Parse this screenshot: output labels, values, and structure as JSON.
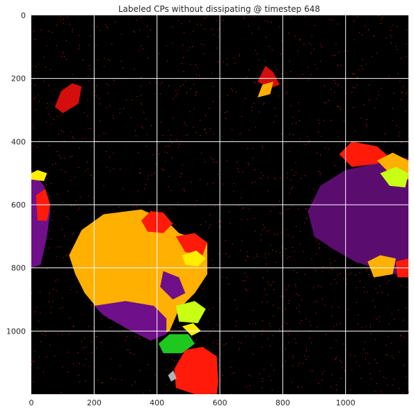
{
  "chart_data": {
    "type": "heatmap",
    "title": "Labeled CPs without dissipating @ timestep 648",
    "xlabel": "",
    "ylabel": "",
    "xlim": [
      0,
      1200
    ],
    "ylim": [
      1200,
      0
    ],
    "x_ticks": [
      0,
      200,
      400,
      600,
      800,
      1000
    ],
    "y_ticks": [
      0,
      200,
      400,
      600,
      800,
      1000
    ],
    "grid": true,
    "background": "#000000",
    "colors": {
      "purple": "#5a0d6e",
      "violet": "#6f0f8a",
      "orange": "#ffb000",
      "red": "#ff1a0a",
      "dark_red": "#d40d0d",
      "yellow": "#ffee00",
      "lime": "#c8ff14",
      "green": "#1ec81e",
      "pink": "#c97a7a",
      "grey": "#b4b4b4",
      "speckle": "#ff1e1e"
    },
    "regions": [
      {
        "label": "cluster-top-left-red",
        "color": "dark_red",
        "points": [
          [
            75,
            290
          ],
          [
            95,
            240
          ],
          [
            130,
            215
          ],
          [
            160,
            225
          ],
          [
            150,
            280
          ],
          [
            100,
            310
          ]
        ]
      },
      {
        "label": "cluster-top-center-red",
        "color": "dark_red",
        "points": [
          [
            720,
            210
          ],
          [
            745,
            160
          ],
          [
            770,
            180
          ],
          [
            790,
            220
          ],
          [
            760,
            230
          ]
        ]
      },
      {
        "label": "cluster-top-center-orange",
        "color": "orange",
        "points": [
          [
            720,
            260
          ],
          [
            735,
            220
          ],
          [
            770,
            210
          ],
          [
            760,
            250
          ]
        ]
      },
      {
        "label": "cluster-left-edge-purple",
        "color": "violet",
        "points": [
          [
            0,
            490
          ],
          [
            40,
            540
          ],
          [
            60,
            620
          ],
          [
            50,
            700
          ],
          [
            30,
            790
          ],
          [
            0,
            800
          ]
        ]
      },
      {
        "label": "cluster-left-edge-red",
        "color": "red",
        "points": [
          [
            15,
            570
          ],
          [
            45,
            550
          ],
          [
            60,
            600
          ],
          [
            50,
            650
          ],
          [
            20,
            650
          ]
        ]
      },
      {
        "label": "cluster-left-edge-yellow",
        "color": "yellow",
        "points": [
          [
            0,
            500
          ],
          [
            20,
            490
          ],
          [
            50,
            500
          ],
          [
            40,
            525
          ],
          [
            0,
            520
          ]
        ]
      },
      {
        "label": "cluster-right-purple",
        "color": "purple",
        "points": [
          [
            880,
            620
          ],
          [
            920,
            540
          ],
          [
            1000,
            490
          ],
          [
            1090,
            470
          ],
          [
            1200,
            450
          ],
          [
            1200,
            830
          ],
          [
            1120,
            810
          ],
          [
            1030,
            780
          ],
          [
            960,
            740
          ],
          [
            900,
            700
          ]
        ]
      },
      {
        "label": "cluster-right-red-top",
        "color": "red",
        "points": [
          [
            980,
            440
          ],
          [
            1020,
            400
          ],
          [
            1100,
            415
          ],
          [
            1140,
            450
          ],
          [
            1100,
            470
          ],
          [
            1020,
            480
          ]
        ]
      },
      {
        "label": "cluster-right-orange",
        "color": "orange",
        "points": [
          [
            1100,
            460
          ],
          [
            1150,
            435
          ],
          [
            1200,
            460
          ],
          [
            1200,
            520
          ],
          [
            1150,
            510
          ]
        ]
      },
      {
        "label": "cluster-right-lime",
        "color": "lime",
        "points": [
          [
            1110,
            500
          ],
          [
            1160,
            480
          ],
          [
            1200,
            500
          ],
          [
            1190,
            545
          ],
          [
            1140,
            540
          ]
        ]
      },
      {
        "label": "cluster-right-bottom-orange",
        "color": "orange",
        "points": [
          [
            1070,
            780
          ],
          [
            1110,
            760
          ],
          [
            1160,
            770
          ],
          [
            1150,
            820
          ],
          [
            1090,
            830
          ]
        ]
      },
      {
        "label": "cluster-right-bottom-red",
        "color": "red",
        "points": [
          [
            1160,
            780
          ],
          [
            1200,
            770
          ],
          [
            1200,
            830
          ],
          [
            1165,
            830
          ]
        ]
      },
      {
        "label": "cluster-center-orange",
        "color": "orange",
        "points": [
          [
            160,
            680
          ],
          [
            230,
            630
          ],
          [
            350,
            615
          ],
          [
            430,
            650
          ],
          [
            470,
            690
          ],
          [
            560,
            720
          ],
          [
            560,
            820
          ],
          [
            520,
            880
          ],
          [
            470,
            930
          ],
          [
            440,
            1000
          ],
          [
            380,
            1030
          ],
          [
            300,
            990
          ],
          [
            220,
            940
          ],
          [
            170,
            880
          ],
          [
            140,
            820
          ],
          [
            120,
            760
          ]
        ]
      },
      {
        "label": "cluster-center-purple",
        "color": "violet",
        "points": [
          [
            200,
            920
          ],
          [
            300,
            905
          ],
          [
            390,
            920
          ],
          [
            430,
            960
          ],
          [
            430,
            1010
          ],
          [
            380,
            1030
          ],
          [
            300,
            990
          ],
          [
            230,
            950
          ]
        ]
      },
      {
        "label": "cluster-center-red-top",
        "color": "red",
        "points": [
          [
            350,
            650
          ],
          [
            380,
            620
          ],
          [
            420,
            625
          ],
          [
            450,
            660
          ],
          [
            420,
            690
          ],
          [
            370,
            685
          ]
        ]
      },
      {
        "label": "cluster-center-red-right",
        "color": "red",
        "points": [
          [
            460,
            700
          ],
          [
            520,
            690
          ],
          [
            560,
            720
          ],
          [
            545,
            760
          ],
          [
            490,
            750
          ]
        ]
      },
      {
        "label": "cluster-center-purple-inner",
        "color": "violet",
        "points": [
          [
            420,
            810
          ],
          [
            470,
            830
          ],
          [
            490,
            880
          ],
          [
            450,
            900
          ],
          [
            410,
            860
          ]
        ]
      },
      {
        "label": "cluster-center-lime",
        "color": "lime",
        "points": [
          [
            460,
            920
          ],
          [
            520,
            905
          ],
          [
            555,
            930
          ],
          [
            530,
            975
          ],
          [
            470,
            970
          ]
        ]
      },
      {
        "label": "cluster-center-yellow",
        "color": "yellow",
        "points": [
          [
            480,
            760
          ],
          [
            525,
            745
          ],
          [
            555,
            770
          ],
          [
            530,
            795
          ],
          [
            490,
            790
          ]
        ]
      },
      {
        "label": "cluster-bottom-green",
        "color": "green",
        "points": [
          [
            405,
            1040
          ],
          [
            440,
            1010
          ],
          [
            500,
            1010
          ],
          [
            520,
            1040
          ],
          [
            480,
            1070
          ],
          [
            420,
            1070
          ]
        ]
      },
      {
        "label": "cluster-bottom-yellow",
        "color": "yellow",
        "points": [
          [
            480,
            985
          ],
          [
            515,
            975
          ],
          [
            540,
            1000
          ],
          [
            510,
            1015
          ]
        ]
      },
      {
        "label": "cluster-bottom-red",
        "color": "red",
        "points": [
          [
            455,
            1120
          ],
          [
            490,
            1060
          ],
          [
            545,
            1050
          ],
          [
            590,
            1080
          ],
          [
            595,
            1160
          ],
          [
            590,
            1200
          ],
          [
            520,
            1200
          ],
          [
            460,
            1180
          ]
        ]
      },
      {
        "label": "cluster-bottom-grey",
        "color": "grey",
        "points": [
          [
            435,
            1140
          ],
          [
            452,
            1125
          ],
          [
            462,
            1150
          ],
          [
            445,
            1160
          ]
        ]
      }
    ]
  }
}
